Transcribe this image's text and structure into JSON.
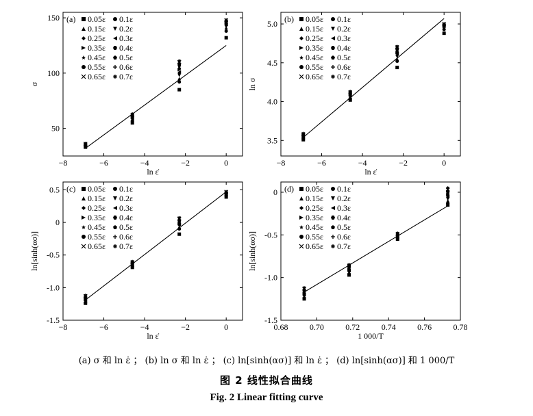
{
  "captions": {
    "subcaption": "(a) σ 和 ln ε̇ ；  (b) ln σ 和 ln ε̇ ；  (c) ln[sinh(ασ)] 和 ln ε̇ ；  (d) ln[sinh(ασ)] 和 1 000/T",
    "figure_cn": "图 2   线性拟合曲线",
    "figure_en": "Fig. 2   Linear fitting curve"
  },
  "legend": {
    "entries": [
      {
        "label": "0.05ε",
        "marker": "square"
      },
      {
        "label": "0.1ε",
        "marker": "circle"
      },
      {
        "label": "0.15ε",
        "marker": "triangle-up"
      },
      {
        "label": "0.2ε",
        "marker": "triangle-down"
      },
      {
        "label": "0.25ε",
        "marker": "diamond"
      },
      {
        "label": "0.3ε",
        "marker": "triangle-left"
      },
      {
        "label": "0.35ε",
        "marker": "triangle-right"
      },
      {
        "label": "0.4ε",
        "marker": "hexagon"
      },
      {
        "label": "0.45ε",
        "marker": "star"
      },
      {
        "label": "0.5ε",
        "marker": "pentagon"
      },
      {
        "label": "0.55ε",
        "marker": "circle"
      },
      {
        "label": "0.6ε",
        "marker": "plus"
      },
      {
        "label": "0.65ε",
        "marker": "cross"
      },
      {
        "label": "0.7ε",
        "marker": "asterisk"
      }
    ]
  },
  "chart_data": [
    {
      "panel": "(a)",
      "type": "scatter",
      "xlabel": "ln ε̇",
      "ylabel": "σ",
      "xlim": [
        -8,
        0.8
      ],
      "ylim": [
        25,
        155
      ],
      "xticks": [
        -8,
        -6,
        -4,
        -2,
        0
      ],
      "yticks": [
        50,
        100,
        150
      ],
      "x": [
        -6.9,
        -4.6,
        -2.3,
        0
      ],
      "series": [
        {
          "name": "0.05ε",
          "values": [
            33,
            55,
            85,
            132
          ]
        },
        {
          "name": "0.1ε",
          "values": [
            34,
            57,
            92,
            138
          ]
        },
        {
          "name": "0.15ε",
          "values": [
            34,
            58,
            95,
            141
          ]
        },
        {
          "name": "0.2ε",
          "values": [
            35,
            58,
            98,
            142
          ]
        },
        {
          "name": "0.25ε",
          "values": [
            35,
            59,
            100,
            143
          ]
        },
        {
          "name": "0.3ε",
          "values": [
            35,
            59,
            101,
            144
          ]
        },
        {
          "name": "0.35ε",
          "values": [
            35,
            60,
            103,
            145
          ]
        },
        {
          "name": "0.4ε",
          "values": [
            36,
            60,
            104,
            145
          ]
        },
        {
          "name": "0.45ε",
          "values": [
            36,
            61,
            106,
            146
          ]
        },
        {
          "name": "0.5ε",
          "values": [
            36,
            61,
            107,
            146
          ]
        },
        {
          "name": "0.55ε",
          "values": [
            36,
            62,
            108,
            147
          ]
        },
        {
          "name": "0.6ε",
          "values": [
            36,
            62,
            109,
            147
          ]
        },
        {
          "name": "0.65ε",
          "values": [
            36,
            62,
            110,
            148
          ]
        },
        {
          "name": "0.7ε",
          "values": [
            36,
            63,
            111,
            148
          ]
        }
      ],
      "fit": {
        "x": [
          -6.9,
          0
        ],
        "y": [
          32,
          125
        ]
      }
    },
    {
      "panel": "(b)",
      "type": "scatter",
      "xlabel": "ln ε̇",
      "ylabel": "ln σ",
      "xlim": [
        -8,
        0.8
      ],
      "ylim": [
        3.3,
        5.15
      ],
      "xticks": [
        -8,
        -6,
        -4,
        -2,
        0
      ],
      "yticks": [
        3.5,
        4.0,
        4.5,
        5.0
      ],
      "x": [
        -6.9,
        -4.6,
        -2.3,
        0
      ],
      "series": [
        {
          "name": "0.05ε",
          "values": [
            3.51,
            4.02,
            4.44,
            4.88
          ]
        },
        {
          "name": "0.1ε",
          "values": [
            3.52,
            4.04,
            4.52,
            4.93
          ]
        },
        {
          "name": "0.15ε",
          "values": [
            3.53,
            4.05,
            4.55,
            4.95
          ]
        },
        {
          "name": "0.2ε",
          "values": [
            3.54,
            4.06,
            4.58,
            4.96
          ]
        },
        {
          "name": "0.25ε",
          "values": [
            3.54,
            4.07,
            4.6,
            4.96
          ]
        },
        {
          "name": "0.3ε",
          "values": [
            3.55,
            4.08,
            4.62,
            4.97
          ]
        },
        {
          "name": "0.35ε",
          "values": [
            3.55,
            4.09,
            4.63,
            4.97
          ]
        },
        {
          "name": "0.4ε",
          "values": [
            3.56,
            4.1,
            4.64,
            4.98
          ]
        },
        {
          "name": "0.45ε",
          "values": [
            3.56,
            4.1,
            4.66,
            4.98
          ]
        },
        {
          "name": "0.5ε",
          "values": [
            3.57,
            4.11,
            4.67,
            4.99
          ]
        },
        {
          "name": "0.55ε",
          "values": [
            3.57,
            4.11,
            4.68,
            4.99
          ]
        },
        {
          "name": "0.6ε",
          "values": [
            3.58,
            4.12,
            4.69,
            5.0
          ]
        },
        {
          "name": "0.65ε",
          "values": [
            3.58,
            4.12,
            4.7,
            5.0
          ]
        },
        {
          "name": "0.7ε",
          "values": [
            3.59,
            4.13,
            4.71,
            5.0
          ]
        }
      ],
      "fit": {
        "x": [
          -6.9,
          0
        ],
        "y": [
          3.54,
          5.07
        ]
      }
    },
    {
      "panel": "(c)",
      "type": "scatter",
      "xlabel": "ln ε̇",
      "ylabel": "ln[sinh(ασ)]",
      "xlim": [
        -8,
        0.8
      ],
      "ylim": [
        -1.5,
        0.62
      ],
      "xticks": [
        -8,
        -6,
        -4,
        -2,
        0
      ],
      "yticks": [
        -1.5,
        -1.0,
        -0.5,
        0,
        0.5
      ],
      "x": [
        -6.9,
        -4.6,
        -2.3,
        0
      ],
      "series": [
        {
          "name": "0.05ε",
          "values": [
            -1.24,
            -0.69,
            -0.18,
            0.39
          ]
        },
        {
          "name": "0.1ε",
          "values": [
            -1.23,
            -0.68,
            -0.1,
            0.41
          ]
        },
        {
          "name": "0.15ε",
          "values": [
            -1.22,
            -0.67,
            -0.07,
            0.42
          ]
        },
        {
          "name": "0.2ε",
          "values": [
            -1.21,
            -0.66,
            -0.05,
            0.43
          ]
        },
        {
          "name": "0.25ε",
          "values": [
            -1.2,
            -0.65,
            -0.04,
            0.43
          ]
        },
        {
          "name": "0.3ε",
          "values": [
            -1.19,
            -0.65,
            -0.03,
            0.44
          ]
        },
        {
          "name": "0.35ε",
          "values": [
            -1.18,
            -0.64,
            -0.02,
            0.44
          ]
        },
        {
          "name": "0.4ε",
          "values": [
            -1.17,
            -0.63,
            -0.01,
            0.45
          ]
        },
        {
          "name": "0.45ε",
          "values": [
            -1.16,
            -0.63,
            0.0,
            0.45
          ]
        },
        {
          "name": "0.5ε",
          "values": [
            -1.15,
            -0.62,
            0.02,
            0.46
          ]
        },
        {
          "name": "0.55ε",
          "values": [
            -1.15,
            -0.62,
            0.03,
            0.46
          ]
        },
        {
          "name": "0.6ε",
          "values": [
            -1.14,
            -0.61,
            0.04,
            0.46
          ]
        },
        {
          "name": "0.65ε",
          "values": [
            -1.13,
            -0.61,
            0.06,
            0.47
          ]
        },
        {
          "name": "0.7ε",
          "values": [
            -1.12,
            -0.6,
            0.07,
            0.47
          ]
        }
      ],
      "fit": {
        "x": [
          -6.9,
          0
        ],
        "y": [
          -1.19,
          0.47
        ]
      }
    },
    {
      "panel": "(d)",
      "type": "scatter",
      "xlabel": "1 000/T",
      "ylabel": "ln[sinh(ασ)]",
      "xlim": [
        0.68,
        0.78
      ],
      "ylim": [
        -1.5,
        0.12
      ],
      "xticks": [
        0.68,
        0.7,
        0.72,
        0.74,
        0.76,
        0.78
      ],
      "yticks": [
        -1.5,
        -1.0,
        -0.5,
        0
      ],
      "x": [
        0.693,
        0.718,
        0.745,
        0.773
      ],
      "series": [
        {
          "name": "0.05ε",
          "values": [
            -1.25,
            -0.97,
            -0.55,
            -0.15
          ]
        },
        {
          "name": "0.1ε",
          "values": [
            -1.24,
            -0.96,
            -0.54,
            -0.13
          ]
        },
        {
          "name": "0.15ε",
          "values": [
            -1.23,
            -0.95,
            -0.54,
            -0.1
          ]
        },
        {
          "name": "0.2ε",
          "values": [
            -1.22,
            -0.94,
            -0.53,
            -0.08
          ]
        },
        {
          "name": "0.25ε",
          "values": [
            -1.21,
            -0.93,
            -0.53,
            -0.06
          ]
        },
        {
          "name": "0.3ε",
          "values": [
            -1.2,
            -0.92,
            -0.52,
            -0.05
          ]
        },
        {
          "name": "0.35ε",
          "values": [
            -1.19,
            -0.91,
            -0.52,
            -0.03
          ]
        },
        {
          "name": "0.4ε",
          "values": [
            -1.18,
            -0.9,
            -0.51,
            -0.02
          ]
        },
        {
          "name": "0.45ε",
          "values": [
            -1.17,
            -0.89,
            -0.51,
            -0.01
          ]
        },
        {
          "name": "0.5ε",
          "values": [
            -1.16,
            -0.88,
            -0.5,
            0.0
          ]
        },
        {
          "name": "0.55ε",
          "values": [
            -1.15,
            -0.87,
            -0.5,
            0.01
          ]
        },
        {
          "name": "0.6ε",
          "values": [
            -1.14,
            -0.86,
            -0.49,
            0.02
          ]
        },
        {
          "name": "0.65ε",
          "values": [
            -1.13,
            -0.86,
            -0.49,
            0.03
          ]
        },
        {
          "name": "0.7ε",
          "values": [
            -1.12,
            -0.85,
            -0.48,
            0.05
          ]
        }
      ],
      "fit": {
        "x": [
          0.693,
          0.773
        ],
        "y": [
          -1.17,
          -0.16
        ]
      }
    }
  ]
}
